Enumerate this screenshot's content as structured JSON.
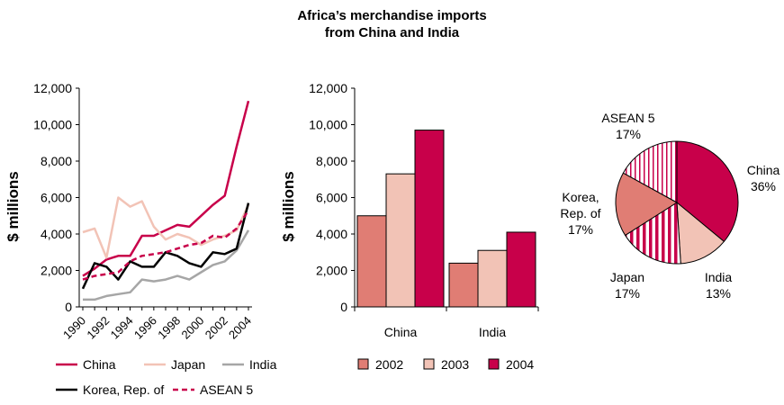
{
  "title_lines": [
    "Africa’s merchandise imports",
    "from China and India"
  ],
  "colors": {
    "china": "#c8004a",
    "japan": "#f2c3b6",
    "india": "#a6a6a6",
    "korea": "#000000",
    "asean": "#c8004a",
    "bar2002": "#e07d74",
    "bar2003": "#f2c3b6",
    "bar2004": "#c8004a",
    "pie_china": "#c8004a",
    "pie_india": "#f2c3b6",
    "pie_japan": "#c8004a",
    "pie_korea": "#e07d74",
    "pie_asean": "#c8004a"
  },
  "chart_data": [
    {
      "type": "line",
      "ylabel": "$ millions",
      "ylim": [
        0,
        12000
      ],
      "yticks": [
        "0",
        "2,000",
        "4,000",
        "6,000",
        "8,000",
        "10,000",
        "12,000"
      ],
      "xticks": [
        "1990",
        "1992",
        "1994",
        "1996",
        "1998",
        "2000",
        "2002",
        "2004"
      ],
      "x": [
        1990,
        1991,
        1992,
        1993,
        1994,
        1995,
        1996,
        1997,
        1998,
        1999,
        2000,
        2001,
        2002,
        2003,
        2004
      ],
      "series": [
        {
          "name": "China",
          "style": "solid",
          "color_key": "china",
          "values": [
            1700,
            2100,
            2600,
            2800,
            2800,
            3900,
            3900,
            4200,
            4500,
            4400,
            5000,
            5600,
            6100,
            8800,
            11300
          ]
        },
        {
          "name": "Japan",
          "style": "solid",
          "color_key": "japan",
          "values": [
            4100,
            4300,
            2700,
            6000,
            5500,
            5800,
            4400,
            3700,
            4000,
            3800,
            3400,
            3700,
            3900,
            4200,
            5600
          ]
        },
        {
          "name": "India",
          "style": "solid",
          "color_key": "india",
          "values": [
            400,
            400,
            600,
            700,
            800,
            1500,
            1400,
            1500,
            1700,
            1500,
            1900,
            2300,
            2500,
            3100,
            4200
          ]
        },
        {
          "name": "Korea, Rep. of",
          "style": "solid",
          "color_key": "korea",
          "values": [
            1000,
            2400,
            2200,
            1500,
            2500,
            2200,
            2200,
            3000,
            2800,
            2400,
            2200,
            3000,
            2900,
            3200,
            5700
          ]
        },
        {
          "name": "ASEAN 5",
          "style": "dashed",
          "color_key": "asean",
          "values": [
            1500,
            1700,
            1800,
            1900,
            2500,
            2800,
            2900,
            3000,
            3200,
            3400,
            3500,
            3900,
            3800,
            4300,
            5300
          ]
        }
      ]
    },
    {
      "type": "bar",
      "ylabel": "$ millions",
      "ylim": [
        0,
        12000
      ],
      "yticks": [
        "0",
        "2,000",
        "4,000",
        "6,000",
        "8,000",
        "10,000",
        "12,000"
      ],
      "categories": [
        "China",
        "India"
      ],
      "series": [
        {
          "name": "2002",
          "color_key": "bar2002",
          "values": [
            5000,
            2400
          ]
        },
        {
          "name": "2003",
          "color_key": "bar2003",
          "values": [
            7300,
            3100
          ]
        },
        {
          "name": "2004",
          "color_key": "bar2004",
          "values": [
            9700,
            4100
          ]
        }
      ]
    },
    {
      "type": "pie",
      "slices": [
        {
          "name": "China",
          "label_lines": [
            "China",
            "36%"
          ],
          "value": 36,
          "fill": "solid",
          "color_key": "pie_china"
        },
        {
          "name": "India",
          "label_lines": [
            "India",
            "13%"
          ],
          "value": 13,
          "fill": "solid",
          "color_key": "pie_india"
        },
        {
          "name": "Japan",
          "label_lines": [
            "Japan",
            "17%"
          ],
          "value": 17,
          "fill": "thick-stripes",
          "color_key": "pie_japan"
        },
        {
          "name": "Korea, Rep. of",
          "label_lines": [
            "Korea,",
            "Rep. of",
            "17%"
          ],
          "value": 17,
          "fill": "solid",
          "color_key": "pie_korea"
        },
        {
          "name": "ASEAN 5",
          "label_lines": [
            "ASEAN 5",
            "17%"
          ],
          "value": 17,
          "fill": "thin-stripes",
          "color_key": "pie_asean"
        }
      ]
    }
  ]
}
